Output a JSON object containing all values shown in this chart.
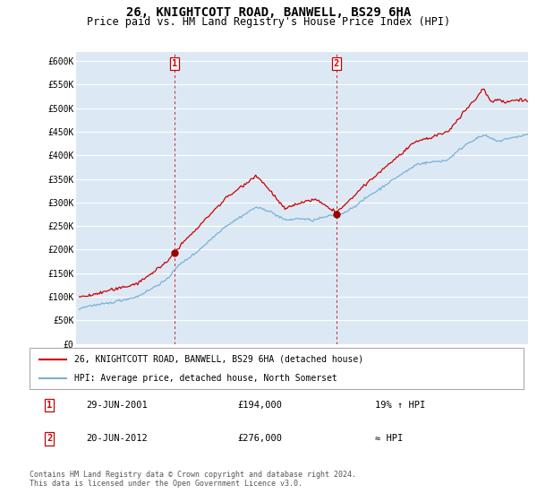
{
  "title": "26, KNIGHTCOTT ROAD, BANWELL, BS29 6HA",
  "subtitle": "Price paid vs. HM Land Registry's House Price Index (HPI)",
  "title_fontsize": 10,
  "subtitle_fontsize": 8.5,
  "ylim": [
    0,
    620000
  ],
  "yticks": [
    0,
    50000,
    100000,
    150000,
    200000,
    250000,
    300000,
    350000,
    400000,
    450000,
    500000,
    550000,
    600000
  ],
  "ytick_labels": [
    "£0",
    "£50K",
    "£100K",
    "£150K",
    "£200K",
    "£250K",
    "£300K",
    "£350K",
    "£400K",
    "£450K",
    "£500K",
    "£550K",
    "£600K"
  ],
  "xlim_start": 1994.8,
  "xlim_end": 2025.5,
  "bg_color": "#dce9f5",
  "line_color_red": "#cc0000",
  "line_color_blue": "#7ab0d8",
  "marker_color_red": "#990000",
  "sale1_x": 2001.49,
  "sale1_y": 194000,
  "sale2_x": 2012.47,
  "sale2_y": 276000,
  "legend_label1": "26, KNIGHTCOTT ROAD, BANWELL, BS29 6HA (detached house)",
  "legend_label2": "HPI: Average price, detached house, North Somerset",
  "table_row1": [
    "1",
    "29-JUN-2001",
    "£194,000",
    "19% ↑ HPI"
  ],
  "table_row2": [
    "2",
    "20-JUN-2012",
    "£276,000",
    "≈ HPI"
  ],
  "footer1": "Contains HM Land Registry data © Crown copyright and database right 2024.",
  "footer2": "This data is licensed under the Open Government Licence v3.0.",
  "hpi_segments": [
    [
      1995.0,
      75000
    ],
    [
      1997.0,
      88000
    ],
    [
      1999.0,
      105000
    ],
    [
      2001.0,
      140000
    ],
    [
      2001.49,
      163000
    ],
    [
      2003.0,
      200000
    ],
    [
      2005.0,
      255000
    ],
    [
      2007.0,
      295000
    ],
    [
      2008.0,
      285000
    ],
    [
      2009.0,
      265000
    ],
    [
      2010.0,
      270000
    ],
    [
      2011.0,
      265000
    ],
    [
      2012.47,
      276000
    ],
    [
      2013.0,
      280000
    ],
    [
      2014.0,
      300000
    ],
    [
      2016.0,
      345000
    ],
    [
      2018.0,
      385000
    ],
    [
      2020.0,
      390000
    ],
    [
      2021.5,
      430000
    ],
    [
      2022.5,
      445000
    ],
    [
      2023.5,
      430000
    ],
    [
      2024.0,
      435000
    ],
    [
      2025.5,
      445000
    ]
  ],
  "red_segments": [
    [
      1995.0,
      100000
    ],
    [
      1997.0,
      112000
    ],
    [
      1999.0,
      130000
    ],
    [
      2001.0,
      175000
    ],
    [
      2001.49,
      194000
    ],
    [
      2003.0,
      240000
    ],
    [
      2005.0,
      305000
    ],
    [
      2007.0,
      355000
    ],
    [
      2008.0,
      320000
    ],
    [
      2009.0,
      285000
    ],
    [
      2010.0,
      300000
    ],
    [
      2011.0,
      305000
    ],
    [
      2012.47,
      276000
    ],
    [
      2013.0,
      290000
    ],
    [
      2014.0,
      320000
    ],
    [
      2016.0,
      380000
    ],
    [
      2018.0,
      430000
    ],
    [
      2020.0,
      445000
    ],
    [
      2021.5,
      500000
    ],
    [
      2022.5,
      540000
    ],
    [
      2023.0,
      510000
    ],
    [
      2023.5,
      515000
    ],
    [
      2024.0,
      510000
    ],
    [
      2025.0,
      520000
    ],
    [
      2025.5,
      515000
    ]
  ]
}
